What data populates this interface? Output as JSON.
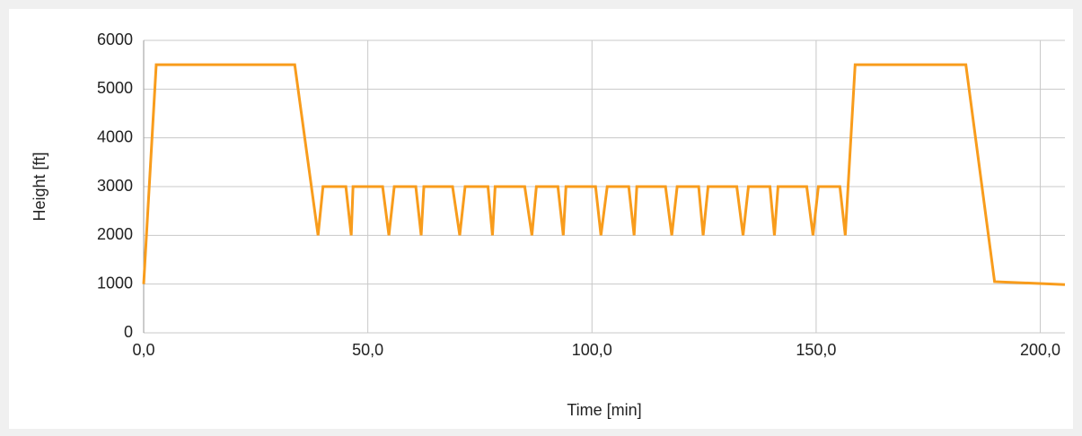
{
  "chart_data": {
    "type": "line",
    "xlabel": "Time [min]",
    "ylabel": "Height [ft]",
    "x": [
      0,
      2.8,
      33.7,
      38.9,
      40,
      45.1,
      46.3,
      46.7,
      53.3,
      54.7,
      55.9,
      60.7,
      61.9,
      62.5,
      68.9,
      70.5,
      71.7,
      76.8,
      77.8,
      78.4,
      85,
      86.6,
      87.6,
      92.4,
      93.6,
      94.2,
      100.8,
      102,
      103.4,
      108.2,
      109.4,
      110,
      116.4,
      117.8,
      119,
      123.8,
      124.8,
      125.9,
      132.3,
      133.7,
      134.9,
      139.7,
      140.7,
      141.5,
      147.9,
      149.3,
      150.5,
      155.3,
      156.5,
      158.7,
      183.4,
      189.8,
      205.5
    ],
    "series": [
      {
        "name": "Height",
        "color": "#f89c1c",
        "values": [
          1000,
          5500,
          5500,
          2000,
          3000,
          3000,
          2000,
          3000,
          3000,
          2000,
          3000,
          3000,
          2000,
          3000,
          3000,
          2000,
          3000,
          3000,
          2000,
          3000,
          3000,
          2000,
          3000,
          3000,
          2000,
          3000,
          3000,
          2000,
          3000,
          3000,
          2000,
          3000,
          3000,
          2000,
          3000,
          3000,
          2000,
          3000,
          3000,
          2000,
          3000,
          3000,
          2000,
          3000,
          3000,
          2000,
          3000,
          3000,
          2000,
          5500,
          5500,
          1050,
          990
        ]
      }
    ],
    "xlim": [
      0,
      205.5
    ],
    "xticks": [
      {
        "value": 0,
        "label": "0,0"
      },
      {
        "value": 50,
        "label": "50,0"
      },
      {
        "value": 100,
        "label": "100,0"
      },
      {
        "value": 150,
        "label": "150,0"
      },
      {
        "value": 200,
        "label": "200,0"
      }
    ],
    "ylim": [
      0,
      6000
    ],
    "yticks": [
      0,
      1000,
      2000,
      3000,
      4000,
      5000,
      6000
    ],
    "grid": true
  }
}
